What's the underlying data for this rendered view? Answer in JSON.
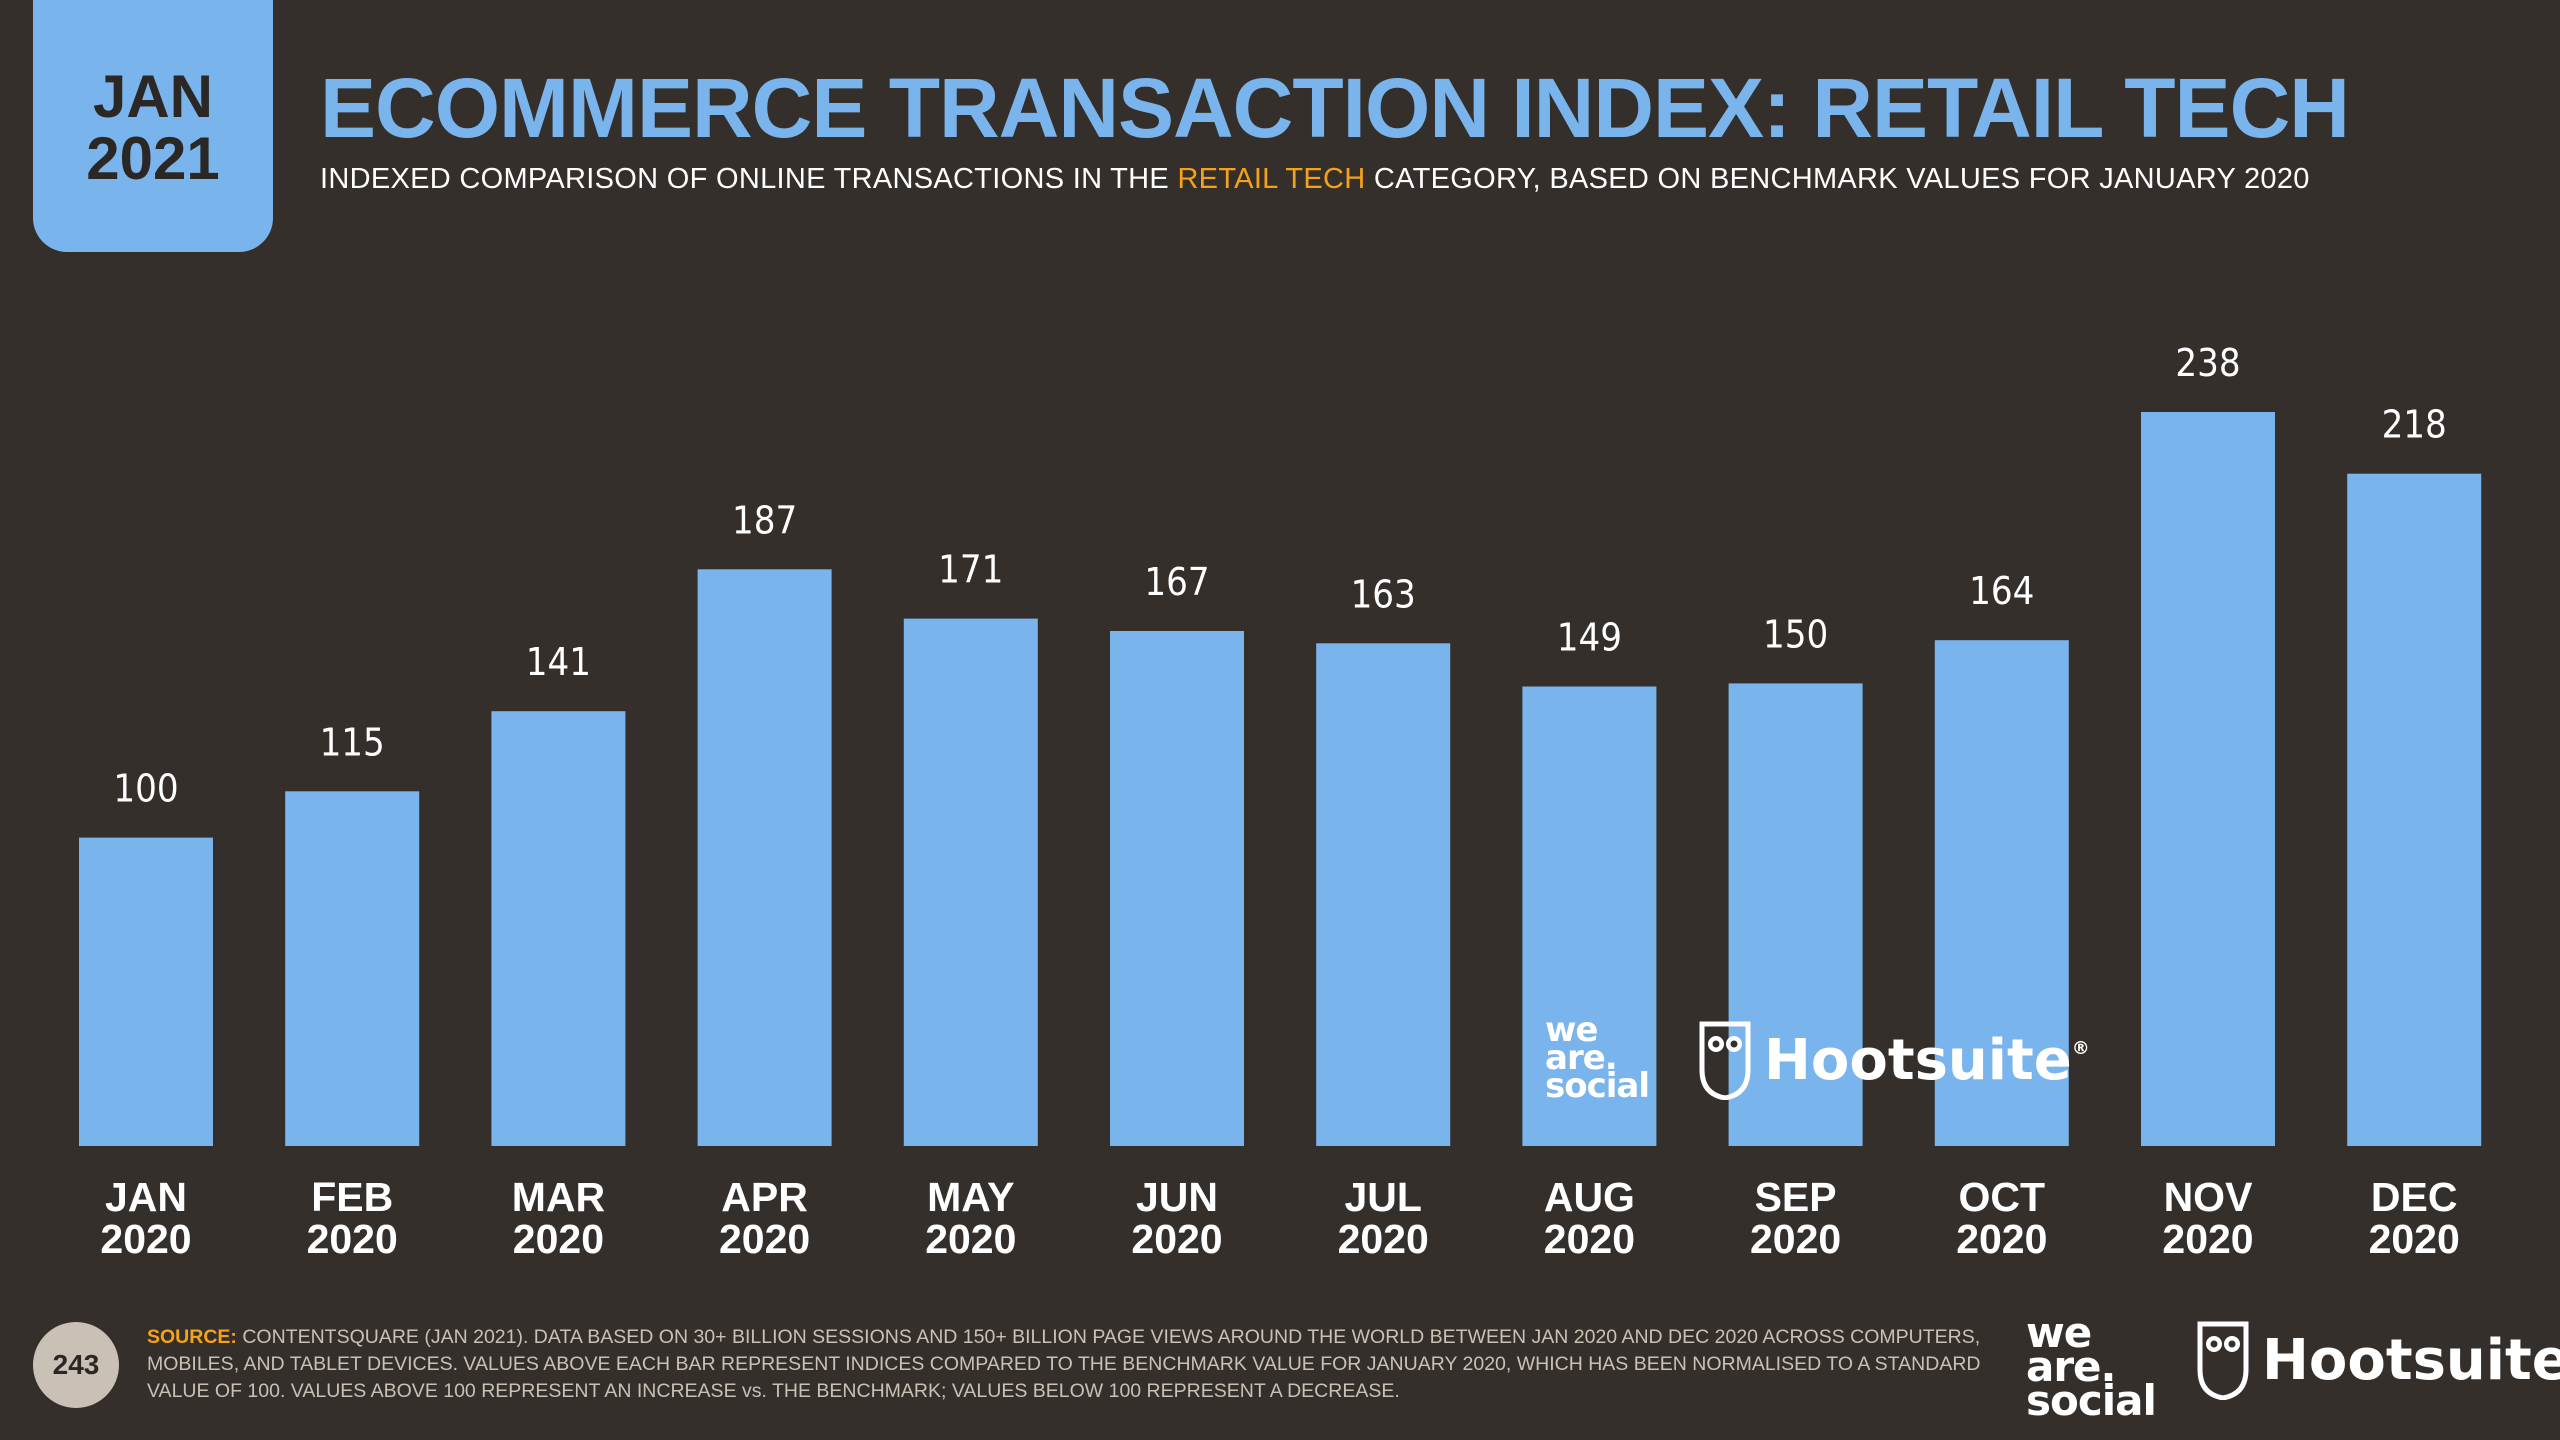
{
  "badge": {
    "month": "JAN",
    "year": "2021"
  },
  "header": {
    "title": "ECOMMERCE TRANSACTION INDEX: RETAIL TECH",
    "subtitle_before": "INDEXED COMPARISON OF ONLINE TRANSACTIONS IN THE ",
    "subtitle_highlight": "RETAIL TECH",
    "subtitle_after": " CATEGORY, BASED ON BENCHMARK VALUES FOR JANUARY 2020"
  },
  "colors": {
    "background": "#352f2c",
    "accent": "#7ab4ec",
    "highlight": "#f4a11b",
    "muted": "#c9c0b6"
  },
  "chart_data": {
    "type": "bar",
    "categories": [
      [
        "JAN",
        "2020"
      ],
      [
        "FEB",
        "2020"
      ],
      [
        "MAR",
        "2020"
      ],
      [
        "APR",
        "2020"
      ],
      [
        "MAY",
        "2020"
      ],
      [
        "JUN",
        "2020"
      ],
      [
        "JUL",
        "2020"
      ],
      [
        "AUG",
        "2020"
      ],
      [
        "SEP",
        "2020"
      ],
      [
        "OCT",
        "2020"
      ],
      [
        "NOV",
        "2020"
      ],
      [
        "DEC",
        "2020"
      ]
    ],
    "values": [
      100,
      115,
      141,
      187,
      171,
      167,
      163,
      149,
      150,
      164,
      238,
      218
    ],
    "title": "ECOMMERCE TRANSACTION INDEX: RETAIL TECH",
    "xlabel": "",
    "ylabel": "",
    "ylim": [
      0,
      238
    ],
    "grid": false,
    "data_labels": true,
    "bar_color": "#7ab4ec"
  },
  "logos": {
    "we_are_social": [
      "we",
      "are.",
      "social"
    ],
    "hootsuite": "Hootsuite",
    "registered_mark": "®"
  },
  "footer": {
    "page_number": "243",
    "source_label": "SOURCE:",
    "source_text": " CONTENTSQUARE (JAN 2021). DATA BASED ON 30+ BILLION SESSIONS AND 150+ BILLION PAGE VIEWS AROUND THE WORLD BETWEEN JAN 2020 AND DEC 2020 ACROSS COMPUTERS, MOBILES, AND TABLET DEVICES. VALUES ABOVE EACH BAR REPRESENT INDICES COMPARED TO THE BENCHMARK VALUE FOR JANUARY 2020, WHICH HAS BEEN NORMALISED TO A STANDARD VALUE OF 100. VALUES ABOVE 100 REPRESENT AN INCREASE vs. THE BENCHMARK; VALUES BELOW 100 REPRESENT A DECREASE."
  }
}
